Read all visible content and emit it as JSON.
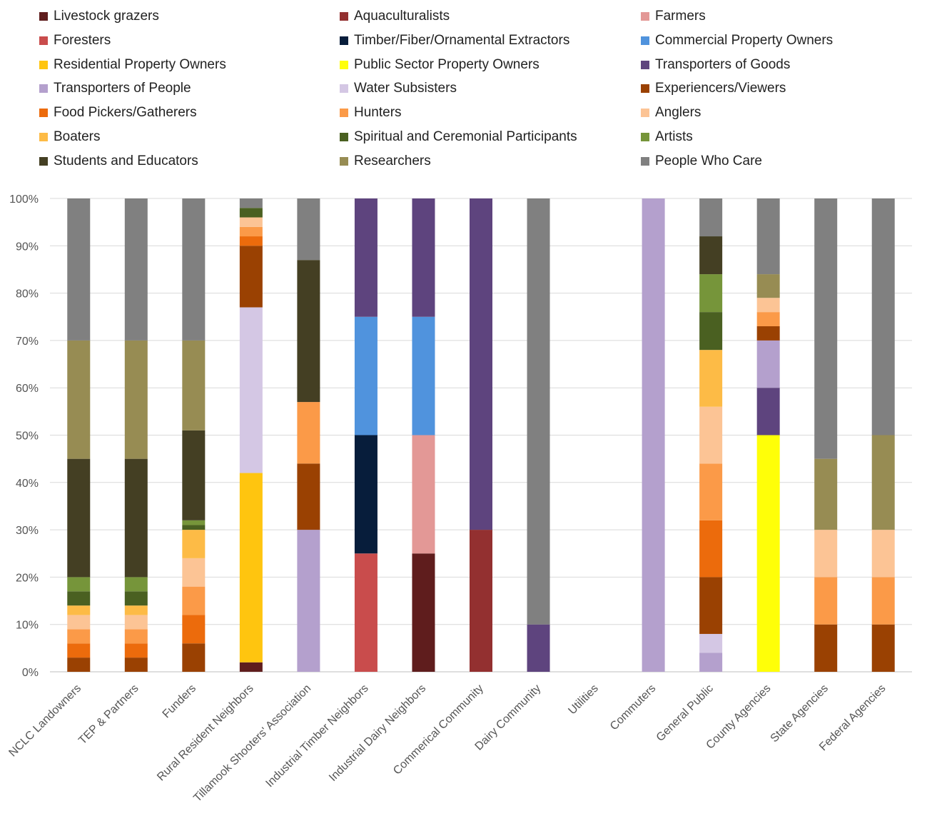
{
  "chart_data": {
    "type": "stacked-bar-100",
    "ylim": [
      0,
      100
    ],
    "yticks": [
      "0%",
      "10%",
      "20%",
      "30%",
      "40%",
      "50%",
      "60%",
      "70%",
      "80%",
      "90%",
      "100%"
    ],
    "grid": true,
    "legend_position": "top",
    "categories": [
      "NCLC Landowners",
      "TEP & Partners",
      "Funders",
      "Rural Resident Neighbors",
      "Tillamook Shooters' Association",
      "Industrial Timber Neighbors",
      "Industrial Dairy Neighbors",
      "Commerical Community",
      "Dairy Community",
      "Utilities",
      "Commuters",
      "General Public",
      "County Agencies",
      "State Agencies",
      "Federal Agencies"
    ],
    "series": [
      {
        "name": "Livestock grazers",
        "color": "#5f1d1d",
        "values": [
          0,
          0,
          0,
          2,
          0,
          0,
          25,
          0,
          0,
          0,
          0,
          0,
          0,
          0,
          0
        ]
      },
      {
        "name": "Aquaculturalists",
        "color": "#933030",
        "values": [
          0,
          0,
          0,
          0,
          0,
          0,
          0,
          30,
          0,
          0,
          0,
          0,
          0,
          0,
          0
        ]
      },
      {
        "name": "Farmers",
        "color": "#e39896",
        "values": [
          0,
          0,
          0,
          0,
          0,
          0,
          25,
          0,
          0,
          0,
          0,
          0,
          0,
          0,
          0
        ]
      },
      {
        "name": "Foresters",
        "color": "#c94c4c",
        "values": [
          0,
          0,
          0,
          0,
          0,
          25,
          0,
          0,
          0,
          0,
          0,
          0,
          0,
          0,
          0
        ]
      },
      {
        "name": "Timber/Fiber/Ornamental Extractors",
        "color": "#071d3b",
        "values": [
          0,
          0,
          0,
          0,
          0,
          25,
          0,
          0,
          0,
          0,
          0,
          0,
          0,
          0,
          0
        ]
      },
      {
        "name": "Commercial Property Owners",
        "color": "#5093dd",
        "values": [
          0,
          0,
          0,
          0,
          0,
          25,
          25,
          0,
          0,
          0,
          0,
          0,
          0,
          0,
          0
        ]
      },
      {
        "name": "Residential Property Owners",
        "color": "#ffc50f",
        "values": [
          0,
          0,
          0,
          40,
          0,
          0,
          0,
          0,
          0,
          0,
          0,
          0,
          0,
          0,
          0
        ]
      },
      {
        "name": "Public Sector Property Owners",
        "color": "#ffff08",
        "values": [
          0,
          0,
          0,
          0,
          0,
          0,
          0,
          0,
          0,
          0,
          0,
          0,
          50,
          0,
          0
        ]
      },
      {
        "name": "Transporters of Goods",
        "color": "#5e447e",
        "values": [
          0,
          0,
          0,
          0,
          0,
          25,
          25,
          70,
          10,
          0,
          0,
          0,
          10,
          0,
          0
        ]
      },
      {
        "name": "Transporters of People",
        "color": "#b4a0cd",
        "values": [
          0,
          0,
          0,
          0,
          30,
          0,
          0,
          0,
          0,
          0,
          100,
          4,
          10,
          0,
          0
        ]
      },
      {
        "name": "Water Subsisters",
        "color": "#d4c7e4",
        "values": [
          0,
          0,
          0,
          35,
          0,
          0,
          0,
          0,
          0,
          0,
          0,
          4,
          0,
          0,
          0
        ]
      },
      {
        "name": "Experiencers/Viewers",
        "color": "#9a4102",
        "values": [
          3,
          3,
          6,
          13,
          14,
          0,
          0,
          0,
          0,
          0,
          0,
          12,
          3,
          10,
          10
        ]
      },
      {
        "name": "Food Pickers/Gatherers",
        "color": "#ec6b0c",
        "values": [
          3,
          3,
          6,
          2,
          0,
          0,
          0,
          0,
          0,
          0,
          0,
          12,
          0,
          0,
          0
        ]
      },
      {
        "name": "Hunters",
        "color": "#fb9a48",
        "values": [
          3,
          3,
          6,
          2,
          13,
          0,
          0,
          0,
          0,
          0,
          0,
          12,
          3,
          10,
          10
        ]
      },
      {
        "name": "Anglers",
        "color": "#fcc495",
        "values": [
          3,
          3,
          6,
          2,
          0,
          0,
          0,
          0,
          0,
          0,
          0,
          12,
          3,
          10,
          10
        ]
      },
      {
        "name": "Boaters",
        "color": "#fdbb46",
        "values": [
          2,
          2,
          6,
          0,
          0,
          0,
          0,
          0,
          0,
          0,
          0,
          12,
          0,
          0,
          0
        ]
      },
      {
        "name": "Spiritual and Ceremonial Participants",
        "color": "#4a6021",
        "values": [
          3,
          3,
          1,
          2,
          0,
          0,
          0,
          0,
          0,
          0,
          0,
          8,
          0,
          0,
          0
        ]
      },
      {
        "name": "Artists",
        "color": "#76953a",
        "values": [
          3,
          3,
          1,
          0,
          0,
          0,
          0,
          0,
          0,
          0,
          0,
          8,
          0,
          0,
          0
        ]
      },
      {
        "name": "Students and Educators",
        "color": "#443f23",
        "values": [
          25,
          25,
          19,
          0,
          30,
          0,
          0,
          0,
          0,
          0,
          0,
          8,
          0,
          0,
          0
        ]
      },
      {
        "name": "Researchers",
        "color": "#978c53",
        "values": [
          25,
          25,
          19,
          0,
          0,
          0,
          0,
          0,
          0,
          0,
          0,
          0,
          5,
          15,
          20
        ]
      },
      {
        "name": "People Who Care",
        "color": "#808080",
        "values": [
          30,
          30,
          30,
          2,
          13,
          0,
          0,
          0,
          90,
          0,
          0,
          8,
          16,
          55,
          50
        ]
      }
    ]
  }
}
